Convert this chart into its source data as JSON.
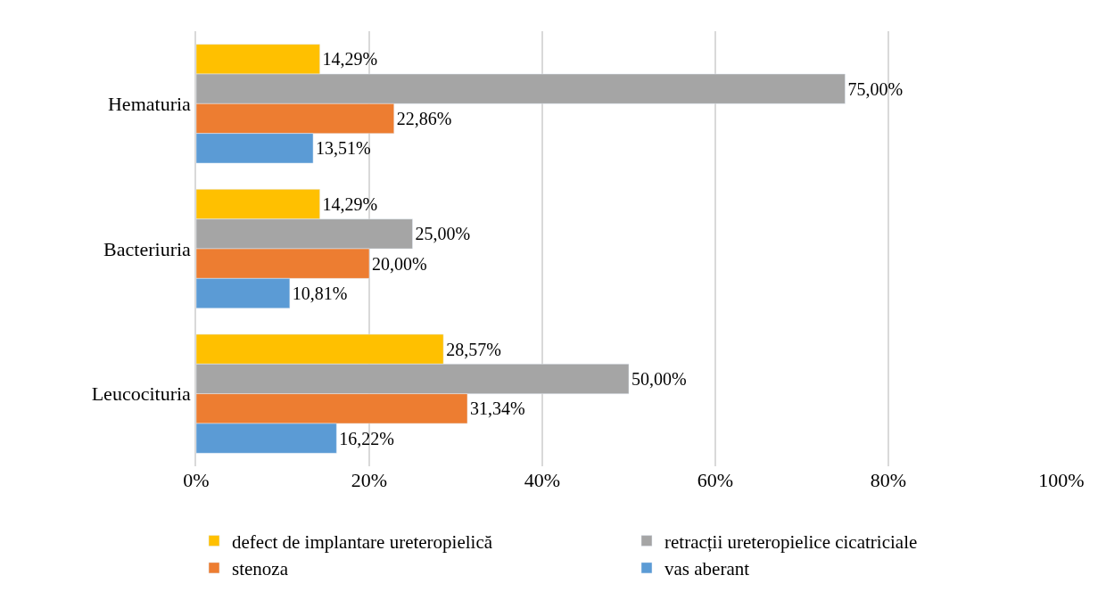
{
  "chart_data": {
    "type": "bar",
    "orientation": "horizontal",
    "categories": [
      "Hematuria",
      "Bacteriuria",
      "Leucocituria"
    ],
    "series": [
      {
        "name": "defect de implantare ureteropielică",
        "color": "#ffc000",
        "values": [
          14.29,
          14.29,
          28.57
        ],
        "value_labels": [
          "14,29%",
          "14,29%",
          "28,57%"
        ]
      },
      {
        "name": "retracții ureteropielice cicatriciale",
        "color": "#a5a5a5",
        "values": [
          75.0,
          25.0,
          50.0
        ],
        "value_labels": [
          "75,00%",
          "25,00%",
          "50,00%"
        ]
      },
      {
        "name": "stenoza",
        "color": "#ed7d31",
        "values": [
          22.86,
          20.0,
          31.34
        ],
        "value_labels": [
          "22,86%",
          "20,00%",
          "31,34%"
        ]
      },
      {
        "name": "vas aberant",
        "color": "#5b9bd5",
        "values": [
          13.51,
          10.81,
          16.22
        ],
        "value_labels": [
          "13,51%",
          "10,81%",
          "16,22%"
        ]
      }
    ],
    "xlim": [
      0,
      100
    ],
    "xticks": [
      {
        "value": 0,
        "label": "0%"
      },
      {
        "value": 20,
        "label": "20%"
      },
      {
        "value": 40,
        "label": "40%"
      },
      {
        "value": 60,
        "label": "60%"
      },
      {
        "value": 80,
        "label": "80%"
      },
      {
        "value": 100,
        "label": "100%"
      }
    ],
    "grid": "x",
    "legend": "bottom"
  }
}
